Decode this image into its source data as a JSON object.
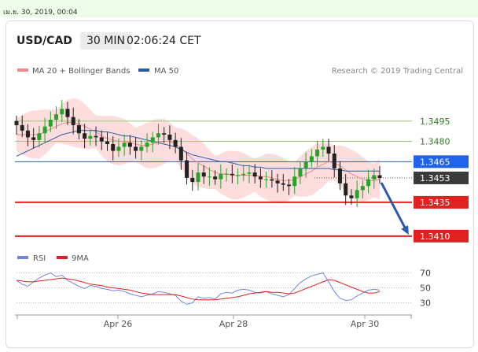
{
  "page": {
    "timestamp": "เม.ย. 30, 2019, 00:04"
  },
  "header": {
    "pair": "USD/CAD",
    "timeframe": "30 MIN",
    "time": "02:06:24 CET"
  },
  "legend": {
    "ma20_label": "MA 20 + Bollinger Bands",
    "ma50_label": "MA 50",
    "credit": "Research © 2019 Trading Central",
    "rsi_label": "RSI",
    "ma9_label": "9MA"
  },
  "colors": {
    "bollinger": "#fbd6d6",
    "ma20": "#f08a8a",
    "ma50": "#2a5aa8",
    "candle_up": "#27a327",
    "candle_down": "#222222",
    "resistance": "#97c97a",
    "support": "#e0211f",
    "pivot": "#2a5aa8",
    "current": "#3a3a3a",
    "arrow": "#2a5aa8",
    "rsi": "#6f87e0",
    "rsi_ma": "#e0211f"
  },
  "chart_data": {
    "type": "line",
    "title": "USD/CAD",
    "xlabel": "",
    "ylabel": "",
    "x_ticks": [
      "Apr 26",
      "Apr 28",
      "Apr 30"
    ],
    "ylim": [
      1.34,
      1.351
    ],
    "levels": [
      {
        "name": "resistance_2",
        "value": 1.3495,
        "label": "1.3495",
        "style": "resistance"
      },
      {
        "name": "resistance_1",
        "value": 1.348,
        "label": "1.3480",
        "style": "resistance"
      },
      {
        "name": "pivot",
        "value": 1.3465,
        "label": "1.3465",
        "style": "pivot"
      },
      {
        "name": "last_price",
        "value": 1.3453,
        "label": "1.3453",
        "style": "current"
      },
      {
        "name": "support_1",
        "value": 1.3435,
        "label": "1.3435",
        "style": "support"
      },
      {
        "name": "support_2",
        "value": 1.341,
        "label": "1.3410",
        "style": "support"
      }
    ],
    "price_series": [
      1.3492,
      1.3488,
      1.3483,
      1.3481,
      1.3486,
      1.3491,
      1.3496,
      1.35,
      1.3504,
      1.3498,
      1.3492,
      1.3486,
      1.3482,
      1.3484,
      1.3483,
      1.348,
      1.3478,
      1.3473,
      1.3476,
      1.3479,
      1.3476,
      1.3473,
      1.3476,
      1.3479,
      1.3483,
      1.3486,
      1.3485,
      1.3481,
      1.3476,
      1.3466,
      1.3453,
      1.345,
      1.3457,
      1.3454,
      1.3454,
      1.3452,
      1.3456,
      1.3456,
      1.3455,
      1.3455,
      1.3456,
      1.3457,
      1.3454,
      1.3452,
      1.3452,
      1.3451,
      1.3449,
      1.3448,
      1.3447,
      1.3454,
      1.346,
      1.3465,
      1.3469,
      1.3474,
      1.3476,
      1.3471,
      1.346,
      1.3449,
      1.344,
      1.3438,
      1.3444,
      1.3447,
      1.3452,
      1.3455,
      1.3453
    ],
    "ma20_series": [
      1.3485,
      1.3485,
      1.3485,
      1.3485,
      1.3485,
      1.3487,
      1.3489,
      1.3491,
      1.3493,
      1.3494,
      1.3494,
      1.3493,
      1.3491,
      1.3489,
      1.3487,
      1.3484,
      1.3482,
      1.3481,
      1.348,
      1.348,
      1.3479,
      1.3478,
      1.3477,
      1.3477,
      1.3478,
      1.3479,
      1.348,
      1.348,
      1.3478,
      1.3475,
      1.3471,
      1.3467,
      1.3464,
      1.3462,
      1.3459,
      1.3457,
      1.3456,
      1.3456,
      1.3455,
      1.3455,
      1.3455,
      1.3455,
      1.3455,
      1.3454,
      1.3454,
      1.3453,
      1.3452,
      1.3451,
      1.3451,
      1.3452,
      1.3454,
      1.3456,
      1.3458,
      1.3461,
      1.3463,
      1.3465,
      1.3464,
      1.3462,
      1.3459,
      1.3456,
      1.3454,
      1.3452,
      1.3451,
      1.3451,
      1.3452
    ],
    "ma50_series": [
      1.3469,
      1.3471,
      1.3473,
      1.3475,
      1.3477,
      1.3479,
      1.3481,
      1.3483,
      1.3485,
      1.3486,
      1.3487,
      1.3488,
      1.3488,
      1.3488,
      1.3488,
      1.3487,
      1.3487,
      1.3486,
      1.3485,
      1.3484,
      1.3484,
      1.3483,
      1.3482,
      1.3481,
      1.348,
      1.3479,
      1.3478,
      1.3477,
      1.3476,
      1.3474,
      1.3472,
      1.347,
      1.3469,
      1.3468,
      1.3467,
      1.3466,
      1.3465,
      1.3465,
      1.3464,
      1.3463,
      1.3462,
      1.3462,
      1.3461,
      1.3461,
      1.346,
      1.346,
      1.346,
      1.346,
      1.346,
      1.346,
      1.346,
      1.346,
      1.346,
      1.346,
      1.346,
      1.346,
      1.3459,
      1.3459,
      1.3458,
      1.3458,
      1.3458,
      1.3458,
      1.3458,
      1.3458,
      1.3458
    ],
    "rsi": {
      "ylim": [
        20,
        80
      ],
      "levels": [
        {
          "value": 70,
          "label": "70"
        },
        {
          "value": 50,
          "label": "50"
        },
        {
          "value": 30,
          "label": "30"
        }
      ],
      "rsi_series": [
        60,
        55,
        52,
        58,
        63,
        67,
        70,
        65,
        67,
        60,
        56,
        52,
        49,
        53,
        52,
        49,
        48,
        46,
        47,
        45,
        42,
        40,
        38,
        40,
        42,
        45,
        44,
        42,
        40,
        32,
        28,
        30,
        38,
        36,
        37,
        35,
        42,
        44,
        43,
        47,
        48,
        47,
        44,
        43,
        45,
        42,
        40,
        38,
        41,
        49,
        57,
        62,
        66,
        68,
        70,
        58,
        45,
        36,
        33,
        34,
        39,
        43,
        47,
        48,
        47
      ],
      "ma9_series": [
        60,
        59,
        58,
        58,
        59,
        60,
        61,
        62,
        63,
        62,
        61,
        59,
        57,
        55,
        54,
        53,
        51,
        50,
        49,
        48,
        47,
        45,
        43,
        42,
        41,
        41,
        41,
        41,
        41,
        39,
        37,
        35,
        34,
        34,
        34,
        34,
        35,
        36,
        37,
        38,
        40,
        42,
        43,
        44,
        45,
        44,
        44,
        43,
        42,
        43,
        46,
        49,
        52,
        55,
        58,
        61,
        60,
        57,
        54,
        51,
        48,
        45,
        43,
        43,
        45
      ]
    }
  }
}
